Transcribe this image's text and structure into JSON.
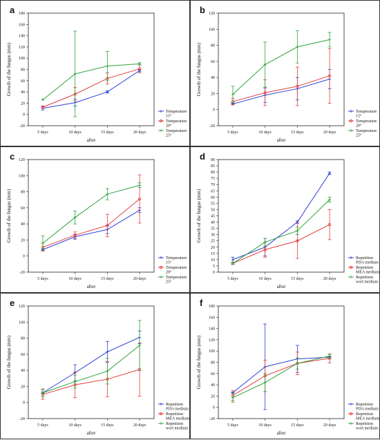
{
  "figure": {
    "panels": [
      "a",
      "b",
      "c",
      "d",
      "e",
      "f"
    ]
  },
  "chart_data": [
    {
      "panel": "a",
      "type": "line",
      "ylabel": "Growth of the fungus (mm)",
      "xlabel": "after",
      "ylim": [
        -20,
        180
      ],
      "yticks": [
        -20,
        0,
        20,
        40,
        60,
        80,
        100,
        120,
        140,
        160,
        180
      ],
      "categories": [
        "5 days",
        "10 days",
        "15 days",
        "20 days"
      ],
      "series": [
        {
          "name": "Temperature\n15°",
          "color": "#2a3fd6",
          "values": [
            11,
            21,
            40,
            78
          ],
          "errors": [
            3,
            6,
            2,
            2
          ]
        },
        {
          "name": "Temperature\n20°",
          "color": "#e23b3b",
          "values": [
            13,
            36,
            64,
            81
          ],
          "errors": [
            2,
            12,
            10,
            7
          ]
        },
        {
          "name": "Temperature\n25°",
          "color": "#2fa33a",
          "values": [
            26,
            72,
            86,
            90
          ],
          "errors": [
            0,
            76,
            26,
            2
          ]
        }
      ]
    },
    {
      "panel": "b",
      "type": "line",
      "ylabel": "Growth of the fungus (mm)",
      "xlabel": "after",
      "ylim": [
        -20,
        120
      ],
      "yticks": [
        -20,
        0,
        20,
        40,
        60,
        80,
        100,
        120
      ],
      "categories": [
        "5 days",
        "10 days",
        "15 days",
        "20 days"
      ],
      "series": [
        {
          "name": "Temperature\n15°",
          "color": "#2a3fd6",
          "values": [
            7,
            18,
            26,
            38
          ],
          "errors": [
            1,
            9,
            14,
            12
          ]
        },
        {
          "name": "Temperature\n20°",
          "color": "#e23b3b",
          "values": [
            10,
            21,
            29,
            42
          ],
          "errors": [
            4,
            16,
            24,
            34
          ]
        },
        {
          "name": "Temperature\n25°",
          "color": "#2fa33a",
          "values": [
            19,
            56,
            78,
            87
          ],
          "errors": [
            10,
            28,
            20,
            9
          ]
        }
      ]
    },
    {
      "panel": "c",
      "type": "line",
      "ylabel": "Growth of the fungus (mm)",
      "xlabel": "after",
      "ylim": [
        -20,
        120
      ],
      "yticks": [
        -20,
        0,
        20,
        40,
        60,
        80,
        100,
        120
      ],
      "categories": [
        "5 days",
        "10 days",
        "15 days",
        "20 days"
      ],
      "series": [
        {
          "name": "Temperature\n15°",
          "color": "#2a3fd6",
          "values": [
            8,
            24,
            33,
            57
          ],
          "errors": [
            1,
            3,
            5,
            3
          ]
        },
        {
          "name": "Temperature\n20°",
          "color": "#e23b3b",
          "values": [
            11,
            26,
            38,
            71
          ],
          "errors": [
            5,
            4,
            14,
            30
          ]
        },
        {
          "name": "Temperature\n25°",
          "color": "#2fa33a",
          "values": [
            16,
            48,
            77,
            88
          ],
          "errors": [
            9,
            8,
            7,
            3
          ]
        }
      ]
    },
    {
      "panel": "d",
      "type": "line",
      "ylabel": "Growth of the fungus (mm)",
      "xlabel": "after",
      "ylim": [
        0,
        90
      ],
      "yticks": [
        0,
        5,
        10,
        15,
        20,
        25,
        30,
        35,
        40,
        45,
        50,
        55,
        60,
        65,
        70,
        75,
        80,
        85,
        90
      ],
      "categories": [
        "5 days",
        "10 days",
        "15 days",
        "20 days"
      ],
      "series": [
        {
          "name": "Repetition\nPDA medium",
          "color": "#2a3fd6",
          "values": [
            10,
            20,
            40,
            79
          ],
          "errors": [
            2,
            7,
            1,
            1
          ]
        },
        {
          "name": "Repetition\nMEA medium",
          "color": "#e23b3b",
          "values": [
            7,
            18,
            25,
            38
          ],
          "errors": [
            0,
            6,
            14,
            12
          ]
        },
        {
          "name": "Repetition\nwort medium",
          "color": "#2fa33a",
          "values": [
            7,
            24,
            33,
            58
          ],
          "errors": [
            1,
            3,
            3,
            2
          ]
        }
      ]
    },
    {
      "panel": "e",
      "type": "line",
      "ylabel": "Growth of the fungus (mm)",
      "xlabel": "after",
      "ylim": [
        -20,
        120
      ],
      "yticks": [
        -20,
        0,
        20,
        40,
        60,
        80,
        100,
        120
      ],
      "categories": [
        "5 days",
        "10 days",
        "15 days",
        "20 days"
      ],
      "series": [
        {
          "name": "Repetition\nPDA medium",
          "color": "#2a3fd6",
          "values": [
            12,
            37,
            63,
            81
          ],
          "errors": [
            1,
            10,
            13,
            8
          ]
        },
        {
          "name": "Repetition\nMEA medium",
          "color": "#e23b3b",
          "values": [
            10,
            22,
            29,
            41
          ],
          "errors": [
            6,
            16,
            22,
            33
          ]
        },
        {
          "name": "Repetition\nwort medium",
          "color": "#2fa33a",
          "values": [
            12,
            26,
            39,
            71
          ],
          "errors": [
            5,
            8,
            16,
            31
          ]
        }
      ]
    },
    {
      "panel": "f",
      "type": "line",
      "ylabel": "Growth of the fungus (mm)",
      "xlabel": "after",
      "ylim": [
        -20,
        180
      ],
      "yticks": [
        -20,
        0,
        20,
        40,
        60,
        80,
        100,
        120,
        140,
        160,
        180
      ],
      "categories": [
        "5 days",
        "10 days",
        "15 days",
        "20 days"
      ],
      "series": [
        {
          "name": "Repetition\nPDA medium",
          "color": "#2a3fd6",
          "values": [
            26,
            72,
            86,
            89
          ],
          "errors": [
            1,
            76,
            24,
            1
          ]
        },
        {
          "name": "Repetition\nMEA medium",
          "color": "#e23b3b",
          "values": [
            21,
            56,
            78,
            87
          ],
          "errors": [
            9,
            28,
            20,
            8
          ]
        },
        {
          "name": "Repetition\nwort medium",
          "color": "#2fa33a",
          "values": [
            17,
            44,
            78,
            91
          ],
          "errors": [
            8,
            16,
            10,
            3
          ]
        }
      ]
    }
  ]
}
